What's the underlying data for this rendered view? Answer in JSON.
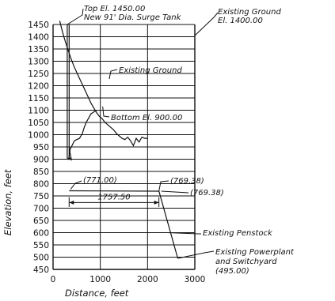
{
  "chart_data": {
    "type": "line",
    "title": "",
    "xlabel": "Distance, feet",
    "ylabel": "Elevation, feet",
    "xlim": [
      0,
      3000
    ],
    "ylim": [
      450,
      1450
    ],
    "xticks": [
      "0",
      "1000",
      "2000",
      "3000"
    ],
    "yticks": [
      "1450",
      "1400",
      "1350",
      "1300",
      "1250",
      "1200",
      "1150",
      "1100",
      "1050",
      "1000",
      "950",
      "900",
      "850",
      "800",
      "750",
      "700",
      "650",
      "600",
      "550",
      "500",
      "450"
    ],
    "grid": true,
    "series": [
      {
        "x": [
          140,
          200,
          260,
          320,
          380,
          440,
          500,
          560,
          620,
          680,
          740,
          800,
          860,
          920,
          980,
          1040,
          1100,
          1160,
          1220,
          1280,
          1340,
          1400,
          1460,
          1520,
          1580,
          1640,
          1700,
          1760,
          1820,
          1880,
          1940,
          2000
        ],
        "y": [
          1465,
          1420,
          1380,
          1345,
          1310,
          1280,
          1255,
          1230,
          1205,
          1180,
          1155,
          1130,
          1110,
          1090,
          1075,
          1065,
          1050,
          1040,
          1030,
          1020,
          1005,
          995,
          985,
          980,
          990,
          975,
          955,
          985,
          970,
          990,
          985,
          985
        ]
      },
      {
        "x": [
          300,
          300,
          330,
          360,
          400,
          450,
          500,
          560,
          620,
          660,
          700,
          760,
          800,
          840,
          880,
          930
        ],
        "y": [
          1450,
          905,
          900,
          940,
          955,
          975,
          980,
          985,
          1005,
          1030,
          1050,
          1070,
          1085,
          1090,
          1095,
          1100
        ]
      },
      {
        "x": [
          340,
          340,
          370,
          390,
          370,
          355,
          340
        ],
        "y": [
          1450,
          900,
          905,
          895,
          915,
          930,
          950
        ]
      },
      {
        "x": [
          340,
          2240,
          2640
        ],
        "y": [
          771,
          769.38,
          495
        ]
      }
    ],
    "annotations": {
      "surge_tank": "Top El. 1450.00\nNew 91' Dia. Surge Tank",
      "existing_ground_1": "Existing Ground\nEl. 1400.00",
      "existing_ground_2": "Existing Ground",
      "bottom": "Bottom El. 900.00",
      "point_771": "(771.00)",
      "point_769a": "(769.38)",
      "point_769b": "(769.38)",
      "length": "1757.50",
      "penstock": "Existing Penstock",
      "powerplant": "Existing Powerplant\nand Switchyard\n(495.00)"
    }
  }
}
